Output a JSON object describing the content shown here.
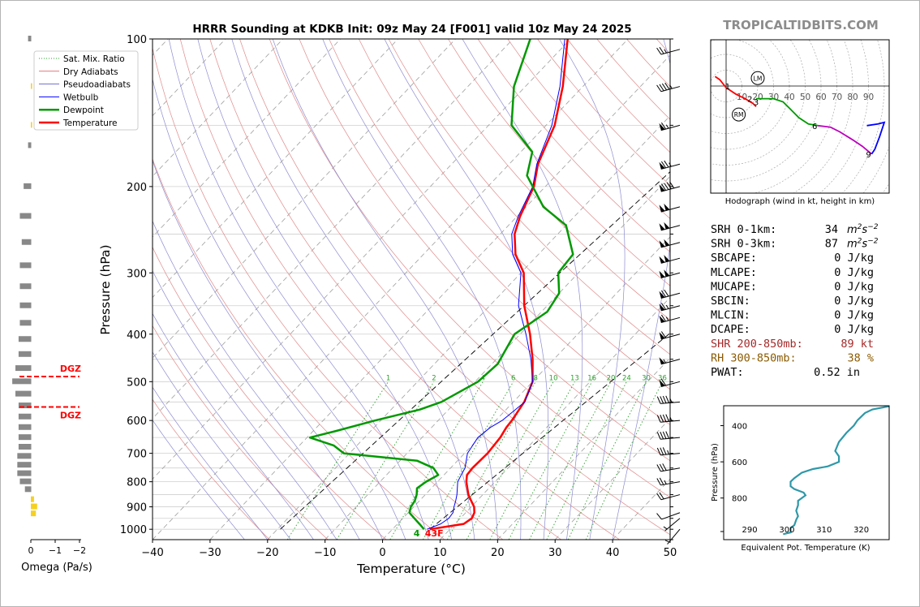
{
  "title": "HRRR Sounding at KDKB Init: 09z May 24 [F001] valid 10z May 24 2025",
  "watermark": "TROPICALTIDBITS.COM",
  "chart_data": [
    {
      "type": "line",
      "subtype": "skew-t",
      "xlabel": "Temperature (°C)",
      "ylabel": "Pressure (hPa)",
      "xlim": [
        -40,
        50
      ],
      "ylim": [
        1050,
        100
      ],
      "yscale": "log",
      "xticks": [
        "−40",
        "−30",
        "−20",
        "−10",
        "0",
        "10",
        "20",
        "30",
        "40",
        "50"
      ],
      "yticks": [
        "100",
        "200",
        "300",
        "400",
        "500",
        "600",
        "700",
        "800",
        "900",
        "1000"
      ],
      "legend": [
        {
          "label": "Sat. Mix. Ratio",
          "color": "#2ca02c",
          "style": "dotted"
        },
        {
          "label": "Dry Adiabats",
          "color": "#d62728",
          "style": "thin"
        },
        {
          "label": "Pseudoadiabats",
          "color": "#1f1fb4",
          "style": "thin"
        },
        {
          "label": "Wetbulb",
          "color": "#0000ff",
          "style": "solid"
        },
        {
          "label": "Dewpoint",
          "color": "#009900",
          "style": "thick"
        },
        {
          "label": "Temperature",
          "color": "#ff0000",
          "style": "thick"
        }
      ],
      "mixing_ratio_labels": [
        "1",
        "2",
        "4",
        "6",
        "8",
        "10",
        "13",
        "16",
        "20",
        "24",
        "30",
        "36"
      ],
      "surface_dewpoint_label": "4",
      "surface_temp_label": "43F",
      "dgz_label": "DGZ",
      "series": [
        {
          "name": "Temperature",
          "color": "#ff0000",
          "points": [
            [
              1000,
              6.5
            ],
            [
              975,
              11.5
            ],
            [
              950,
              12.0
            ],
            [
              925,
              11.5
            ],
            [
              900,
              10.5
            ],
            [
              875,
              9.0
            ],
            [
              850,
              7.5
            ],
            [
              800,
              5.0
            ],
            [
              775,
              4.0
            ],
            [
              750,
              3.8
            ],
            [
              700,
              4.0
            ],
            [
              650,
              3.6
            ],
            [
              620,
              3.0
            ],
            [
              600,
              2.8
            ],
            [
              550,
              1.9
            ],
            [
              500,
              0.0
            ],
            [
              450,
              -3.7
            ],
            [
              400,
              -8.3
            ],
            [
              350,
              -14.0
            ],
            [
              300,
              -19.5
            ],
            [
              275,
              -24.0
            ],
            [
              250,
              -27.5
            ],
            [
              230,
              -29.5
            ],
            [
              200,
              -32.0
            ],
            [
              180,
              -35.0
            ],
            [
              150,
              -38.5
            ],
            [
              125,
              -43.5
            ],
            [
              100,
              -50.5
            ]
          ]
        },
        {
          "name": "Wetbulb",
          "color": "#0000ff",
          "points": [
            [
              1000,
              6.0
            ],
            [
              975,
              7.5
            ],
            [
              950,
              8.0
            ],
            [
              925,
              7.8
            ],
            [
              900,
              7.0
            ],
            [
              875,
              6.3
            ],
            [
              850,
              5.5
            ],
            [
              800,
              3.5
            ],
            [
              775,
              3.0
            ],
            [
              750,
              2.5
            ],
            [
              700,
              0.5
            ],
            [
              650,
              -0.3
            ],
            [
              620,
              0.2
            ],
            [
              600,
              1.1
            ],
            [
              550,
              2.0
            ],
            [
              500,
              0.0
            ],
            [
              450,
              -4.0
            ],
            [
              400,
              -9.0
            ],
            [
              350,
              -15.0
            ],
            [
              300,
              -20.0
            ],
            [
              275,
              -24.5
            ],
            [
              250,
              -28.0
            ],
            [
              230,
              -29.8
            ],
            [
              200,
              -32.2
            ],
            [
              180,
              -35.2
            ],
            [
              150,
              -39.0
            ],
            [
              125,
              -44.0
            ],
            [
              100,
              -51.0
            ]
          ]
        },
        {
          "name": "Dewpoint",
          "color": "#009900",
          "points": [
            [
              1000,
              5.5
            ],
            [
              975,
              3.8
            ],
            [
              950,
              2.0
            ],
            [
              925,
              0.2
            ],
            [
              900,
              -0.5
            ],
            [
              875,
              -0.8
            ],
            [
              850,
              -1.5
            ],
            [
              825,
              -2.5
            ],
            [
              800,
              -2.0
            ],
            [
              775,
              -1.0
            ],
            [
              750,
              -3.0
            ],
            [
              725,
              -7.0
            ],
            [
              700,
              -21.0
            ],
            [
              675,
              -24.0
            ],
            [
              650,
              -29.5
            ],
            [
              630,
              -26.0
            ],
            [
              600,
              -21.0
            ],
            [
              570,
              -15.0
            ],
            [
              550,
              -12.5
            ],
            [
              500,
              -9.5
            ],
            [
              460,
              -9.0
            ],
            [
              400,
              -11.0
            ],
            [
              360,
              -9.0
            ],
            [
              330,
              -10.0
            ],
            [
              300,
              -13.5
            ],
            [
              275,
              -14.0
            ],
            [
              240,
              -20.0
            ],
            [
              220,
              -27.0
            ],
            [
              190,
              -35.0
            ],
            [
              170,
              -38.0
            ],
            [
              150,
              -46.0
            ],
            [
              125,
              -52.0
            ],
            [
              100,
              -57.0
            ]
          ]
        }
      ],
      "parcel_lines": [
        {
          "color": "#000000",
          "style": "dashed",
          "points": [
            [
              1000,
              -19.5
            ],
            [
              100,
              -7.5
            ]
          ]
        },
        {
          "color": "#000000",
          "style": "dashed",
          "points": [
            [
              1000,
              6.5
            ],
            [
              100,
              30.0
            ]
          ]
        }
      ]
    },
    {
      "type": "bar",
      "title": "Omega",
      "xlabel": "Omega (Pa/s)",
      "xticks": [
        "0",
        "−1",
        "−2"
      ],
      "bars_gray": [
        {
          "p": 100,
          "v": 0.05
        },
        {
          "p": 165,
          "v": 0.05
        },
        {
          "p": 200,
          "v": 0.12
        },
        {
          "p": 230,
          "v": 0.18
        },
        {
          "p": 260,
          "v": 0.15
        },
        {
          "p": 290,
          "v": 0.18
        },
        {
          "p": 320,
          "v": 0.18
        },
        {
          "p": 350,
          "v": 0.18
        },
        {
          "p": 380,
          "v": 0.18
        },
        {
          "p": 410,
          "v": 0.2
        },
        {
          "p": 440,
          "v": 0.2
        },
        {
          "p": 470,
          "v": 0.25
        },
        {
          "p": 500,
          "v": 0.3
        },
        {
          "p": 530,
          "v": 0.25
        },
        {
          "p": 560,
          "v": 0.2
        },
        {
          "p": 590,
          "v": 0.2
        },
        {
          "p": 620,
          "v": 0.2
        },
        {
          "p": 650,
          "v": 0.2
        },
        {
          "p": 680,
          "v": 0.2
        },
        {
          "p": 710,
          "v": 0.22
        },
        {
          "p": 740,
          "v": 0.22
        },
        {
          "p": 770,
          "v": 0.22
        },
        {
          "p": 800,
          "v": 0.18
        },
        {
          "p": 830,
          "v": 0.1
        }
      ],
      "bars_yellow": [
        {
          "p": 125,
          "v": -0.02
        },
        {
          "p": 150,
          "v": -0.02
        },
        {
          "p": 870,
          "v": -0.05
        },
        {
          "p": 900,
          "v": -0.1
        },
        {
          "p": 930,
          "v": -0.08
        }
      ],
      "dgz_levels": [
        488,
        563
      ]
    },
    {
      "type": "line",
      "subtype": "hodograph",
      "xlabel": "Hodograph (wind in kt, height in km)",
      "ring_labels": [
        "10",
        "20",
        "30",
        "40",
        "50",
        "60",
        "70",
        "80",
        "90"
      ],
      "storm_motion": [
        {
          "label": "LM",
          "u": 20,
          "v": 5
        },
        {
          "label": "RM",
          "u": 8,
          "v": -18
        }
      ],
      "height_labels": [
        {
          "label": "1",
          "u": 1,
          "v": 0
        },
        {
          "label": "2",
          "u": 15,
          "v": -8
        },
        {
          "label": "3",
          "u": 19,
          "v": -10
        },
        {
          "label": "6",
          "u": 56,
          "v": -25
        },
        {
          "label": "9",
          "u": 90,
          "v": -43
        }
      ],
      "segments": [
        {
          "color": "#ff0000",
          "points": [
            [
              -7,
              6
            ],
            [
              -4,
              4
            ],
            [
              0,
              -1
            ],
            [
              6,
              -5
            ],
            [
              12,
              -8
            ],
            [
              17,
              -11
            ],
            [
              19,
              -13
            ]
          ]
        },
        {
          "color": "#009900",
          "points": [
            [
              19,
              -8
            ],
            [
              24,
              -8
            ],
            [
              30,
              -8
            ],
            [
              36,
              -10
            ],
            [
              40,
              -14
            ],
            [
              46,
              -20
            ],
            [
              52,
              -24
            ],
            [
              58,
              -25
            ]
          ]
        },
        {
          "color": "#bb00bb",
          "points": [
            [
              58,
              -25
            ],
            [
              66,
              -26
            ],
            [
              72,
              -29
            ],
            [
              80,
              -34
            ],
            [
              86,
              -38
            ],
            [
              92,
              -43
            ]
          ]
        },
        {
          "color": "#0000ff",
          "points": [
            [
              92,
              -43
            ],
            [
              94,
              -40
            ],
            [
              97,
              -32
            ],
            [
              100,
              -23
            ],
            [
              96,
              -24
            ],
            [
              89,
              -25
            ]
          ]
        }
      ]
    },
    {
      "type": "line",
      "subtype": "theta-e profile",
      "xlabel": "Equivalent Pot. Temperature (K)",
      "ylabel": "Pressure (hPa)",
      "xticks": [
        "290",
        "300",
        "310",
        "320"
      ],
      "yticks": [
        "400",
        "600",
        "800"
      ],
      "series": [
        {
          "name": "Theta-E",
          "color": "#2f98a8",
          "points": [
            [
              299,
              1000
            ],
            [
              300,
              995
            ],
            [
              301,
              990
            ],
            [
              301,
              965
            ],
            [
              302,
              950
            ],
            [
              302.5,
              920
            ],
            [
              303,
              900
            ],
            [
              302.5,
              870
            ],
            [
              303,
              840
            ],
            [
              303,
              815
            ],
            [
              304,
              800
            ],
            [
              305,
              785
            ],
            [
              304.5,
              770
            ],
            [
              302,
              750
            ],
            [
              301,
              735
            ],
            [
              301,
              710
            ],
            [
              302,
              690
            ],
            [
              304,
              660
            ],
            [
              307,
              640
            ],
            [
              311,
              625
            ],
            [
              314,
              600
            ],
            [
              314,
              570
            ],
            [
              313,
              540
            ],
            [
              314,
              490
            ],
            [
              315,
              465
            ],
            [
              316,
              440
            ],
            [
              318,
              400
            ],
            [
              319,
              370
            ],
            [
              321,
              330
            ],
            [
              323,
              310
            ],
            [
              327,
              295
            ],
            [
              330,
              285
            ]
          ]
        }
      ]
    }
  ],
  "wind_barbs": [
    {
      "p": 1000,
      "spd": 5,
      "dir": 220
    },
    {
      "p": 950,
      "spd": 5,
      "dir": 230
    },
    {
      "p": 925,
      "spd": 10,
      "dir": 250
    },
    {
      "p": 850,
      "spd": 20,
      "dir": 255
    },
    {
      "p": 800,
      "spd": 25,
      "dir": 260
    },
    {
      "p": 750,
      "spd": 30,
      "dir": 260
    },
    {
      "p": 700,
      "spd": 35,
      "dir": 265
    },
    {
      "p": 650,
      "spd": 40,
      "dir": 265
    },
    {
      "p": 600,
      "spd": 45,
      "dir": 265
    },
    {
      "p": 550,
      "spd": 45,
      "dir": 265
    },
    {
      "p": 500,
      "spd": 60,
      "dir": 255
    },
    {
      "p": 450,
      "spd": 55,
      "dir": 255
    },
    {
      "p": 400,
      "spd": 60,
      "dir": 255
    },
    {
      "p": 370,
      "spd": 65,
      "dir": 255
    },
    {
      "p": 350,
      "spd": 65,
      "dir": 255
    },
    {
      "p": 330,
      "spd": 70,
      "dir": 255
    },
    {
      "p": 300,
      "spd": 100,
      "dir": 255
    },
    {
      "p": 280,
      "spd": 100,
      "dir": 255
    },
    {
      "p": 260,
      "spd": 100,
      "dir": 255
    },
    {
      "p": 240,
      "spd": 100,
      "dir": 255
    },
    {
      "p": 220,
      "spd": 100,
      "dir": 255
    },
    {
      "p": 200,
      "spd": 90,
      "dir": 255
    },
    {
      "p": 180,
      "spd": 75,
      "dir": 255
    },
    {
      "p": 150,
      "spd": 65,
      "dir": 255
    },
    {
      "p": 125,
      "spd": 45,
      "dir": 255
    },
    {
      "p": 105,
      "spd": 25,
      "dir": 255
    }
  ],
  "stats": [
    {
      "label": "SRH 0-1km:",
      "value": "34",
      "unit": "m2s-2",
      "color": "#000000"
    },
    {
      "label": "SRH 0-3km:",
      "value": "87",
      "unit": "m2s-2",
      "color": "#000000"
    },
    {
      "label": "SBCAPE:",
      "value": "0 J/kg",
      "unit": "",
      "color": "#000000"
    },
    {
      "label": "MLCAPE:",
      "value": "0 J/kg",
      "unit": "",
      "color": "#000000"
    },
    {
      "label": "MUCAPE:",
      "value": "0 J/kg",
      "unit": "",
      "color": "#000000"
    },
    {
      "label": "SBCIN:",
      "value": "0 J/kg",
      "unit": "",
      "color": "#000000"
    },
    {
      "label": "MLCIN:",
      "value": "0 J/kg",
      "unit": "",
      "color": "#000000"
    },
    {
      "label": "DCAPE:",
      "value": "0 J/kg",
      "unit": "",
      "color": "#000000"
    },
    {
      "label": "SHR 200-850mb:",
      "value": "89 kt",
      "unit": "",
      "color": "#a52a2a"
    },
    {
      "label": "RH 300-850mb:",
      "value": "38 %",
      "unit": "",
      "color": "#8b5a00"
    },
    {
      "label": "PWAT:",
      "value": "0.52 in",
      "unit": "",
      "color": "#000000"
    }
  ]
}
